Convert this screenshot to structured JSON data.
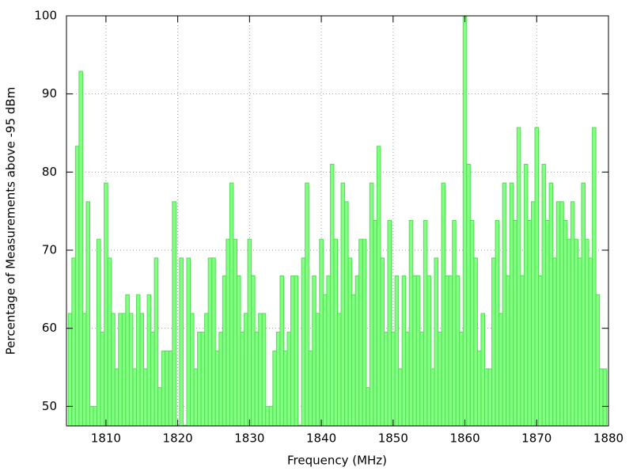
{
  "chart_data": {
    "type": "bar",
    "x_label": "Frequency (MHz)",
    "y_label": "Percentage of Measurements above -95 dBm",
    "color": "#80ff80",
    "edge_color": "#55dd55",
    "bar_width": 0.5,
    "grid": true,
    "xlim": [
      1804.5,
      1880
    ],
    "ylim": [
      47.5,
      100
    ],
    "xticks": [
      1810,
      1820,
      1830,
      1840,
      1850,
      1860,
      1870,
      1880
    ],
    "yticks": [
      50,
      60,
      70,
      80,
      90,
      100
    ],
    "x": [
      1805,
      1805.5,
      1806,
      1806.5,
      1807,
      1807.5,
      1808,
      1808.5,
      1809,
      1809.5,
      1810,
      1810.5,
      1811,
      1811.5,
      1812,
      1812.5,
      1813,
      1813.5,
      1814,
      1814.5,
      1815,
      1815.5,
      1816,
      1816.5,
      1817,
      1817.5,
      1818,
      1818.5,
      1819,
      1819.5,
      1820,
      1820.5,
      1821,
      1821.5,
      1822,
      1822.5,
      1823,
      1823.5,
      1824,
      1824.5,
      1825,
      1825.5,
      1826,
      1826.5,
      1827,
      1827.5,
      1828,
      1828.5,
      1829,
      1829.5,
      1830,
      1830.5,
      1831,
      1831.5,
      1832,
      1832.5,
      1833,
      1833.5,
      1834,
      1834.5,
      1835,
      1835.5,
      1836,
      1836.5,
      1837,
      1837.5,
      1838,
      1838.5,
      1839,
      1839.5,
      1840,
      1840.5,
      1841,
      1841.5,
      1842,
      1842.5,
      1843,
      1843.5,
      1844,
      1844.5,
      1845,
      1845.5,
      1846,
      1846.5,
      1847,
      1847.5,
      1848,
      1848.5,
      1849,
      1849.5,
      1850,
      1850.5,
      1851,
      1851.5,
      1852,
      1852.5,
      1853,
      1853.5,
      1854,
      1854.5,
      1855,
      1855.5,
      1856,
      1856.5,
      1857,
      1857.5,
      1858,
      1858.5,
      1859,
      1859.5,
      1860,
      1860.5,
      1861,
      1861.5,
      1862,
      1862.5,
      1863,
      1863.5,
      1864,
      1864.5,
      1865,
      1865.5,
      1866,
      1866.5,
      1867,
      1867.5,
      1868,
      1868.5,
      1869,
      1869.5,
      1870,
      1870.5,
      1871,
      1871.5,
      1872,
      1872.5,
      1873,
      1873.5,
      1874,
      1874.5,
      1875,
      1875.5,
      1876,
      1876.5,
      1877,
      1877.5,
      1878,
      1878.5,
      1879,
      1879.5
    ],
    "values": [
      61.9,
      69,
      83.3,
      92.9,
      61.9,
      76.2,
      50,
      50,
      71.4,
      59.5,
      78.6,
      69,
      61.9,
      54.8,
      61.9,
      61.9,
      64.3,
      61.9,
      54.8,
      64.3,
      61.9,
      54.8,
      64.3,
      59.5,
      69,
      52.4,
      57.1,
      57.1,
      57.1,
      76.2,
      47.6,
      69,
      47.6,
      69,
      61.9,
      54.8,
      59.5,
      59.5,
      61.9,
      69,
      69,
      57.1,
      59.5,
      66.7,
      71.4,
      78.6,
      71.4,
      66.7,
      59.5,
      61.9,
      71.4,
      66.7,
      59.5,
      61.9,
      61.9,
      50,
      50,
      57.1,
      59.5,
      66.7,
      57.1,
      59.5,
      66.7,
      66.7,
      47.6,
      69,
      78.6,
      57.1,
      66.7,
      61.9,
      71.4,
      64.3,
      66.7,
      81,
      71.4,
      61.9,
      78.6,
      76.2,
      69,
      64.3,
      66.7,
      71.4,
      71.4,
      52.4,
      78.6,
      73.8,
      83.3,
      69,
      59.5,
      73.8,
      59.5,
      66.7,
      54.8,
      66.7,
      59.5,
      73.8,
      66.7,
      66.7,
      59.5,
      73.8,
      66.7,
      54.8,
      69,
      59.5,
      78.6,
      66.7,
      66.7,
      73.8,
      66.7,
      59.5,
      100,
      81,
      73.8,
      69,
      57.1,
      61.9,
      54.8,
      54.8,
      69,
      73.8,
      61.9,
      78.6,
      66.7,
      78.6,
      73.8,
      85.7,
      66.7,
      81,
      73.8,
      76.2,
      85.7,
      66.7,
      81,
      73.8,
      78.6,
      69,
      76.2,
      76.2,
      73.8,
      71.4,
      76.2,
      71.4,
      69,
      78.6,
      71.4,
      69,
      85.7,
      64.3,
      54.8,
      54.8
    ]
  }
}
